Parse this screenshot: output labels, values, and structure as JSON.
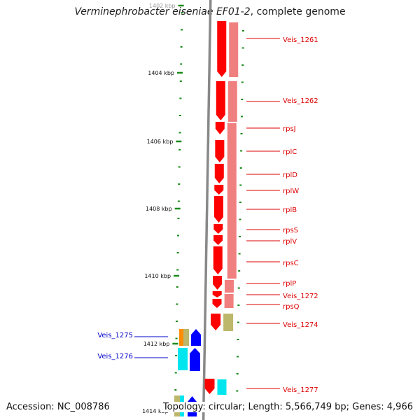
{
  "title": {
    "organism": "Verminephrobacter eiseniae EF01-2",
    "suffix": ", complete genome"
  },
  "footer": {
    "accession": "Accession: NC_008786",
    "topology": "Topology: circular; Length: 5,566,749 bp; Genes: 4,966"
  },
  "colors": {
    "ruler_ticks": "#1a8a1a",
    "backbone": "#888888",
    "gene_primary": "#ff0000",
    "gene_secondary": "#f08080",
    "label_red": "#dd0000",
    "label_blue": "#0000cc",
    "orange": "#ff8c00",
    "tan": "#bdb76b",
    "cyan": "#00e5ee",
    "blue": "#0000ff"
  },
  "ruler": {
    "ticks": [
      "1402 kbp",
      "1404 kbp",
      "1406 kbp",
      "1408 kbp",
      "1410 kbp",
      "1412 kbp",
      "1414 kbp"
    ]
  },
  "genes": [
    {
      "label": "Veis_1261",
      "side": "right"
    },
    {
      "label": "Veis_1262",
      "side": "right"
    },
    {
      "label": "rpsJ",
      "side": "right"
    },
    {
      "label": "rplC",
      "side": "right"
    },
    {
      "label": "rplD",
      "side": "right"
    },
    {
      "label": "rplW",
      "side": "right"
    },
    {
      "label": "rplB",
      "side": "right"
    },
    {
      "label": "rpsS",
      "side": "right"
    },
    {
      "label": "rplV",
      "side": "right"
    },
    {
      "label": "rpsC",
      "side": "right"
    },
    {
      "label": "rplP",
      "side": "right"
    },
    {
      "label": "Veis_1272",
      "side": "right"
    },
    {
      "label": "rpsQ",
      "side": "right"
    },
    {
      "label": "Veis_1274",
      "side": "right"
    },
    {
      "label": "Veis_1275",
      "side": "left"
    },
    {
      "label": "Veis_1276",
      "side": "left"
    },
    {
      "label": "Veis_1277",
      "side": "right"
    }
  ]
}
